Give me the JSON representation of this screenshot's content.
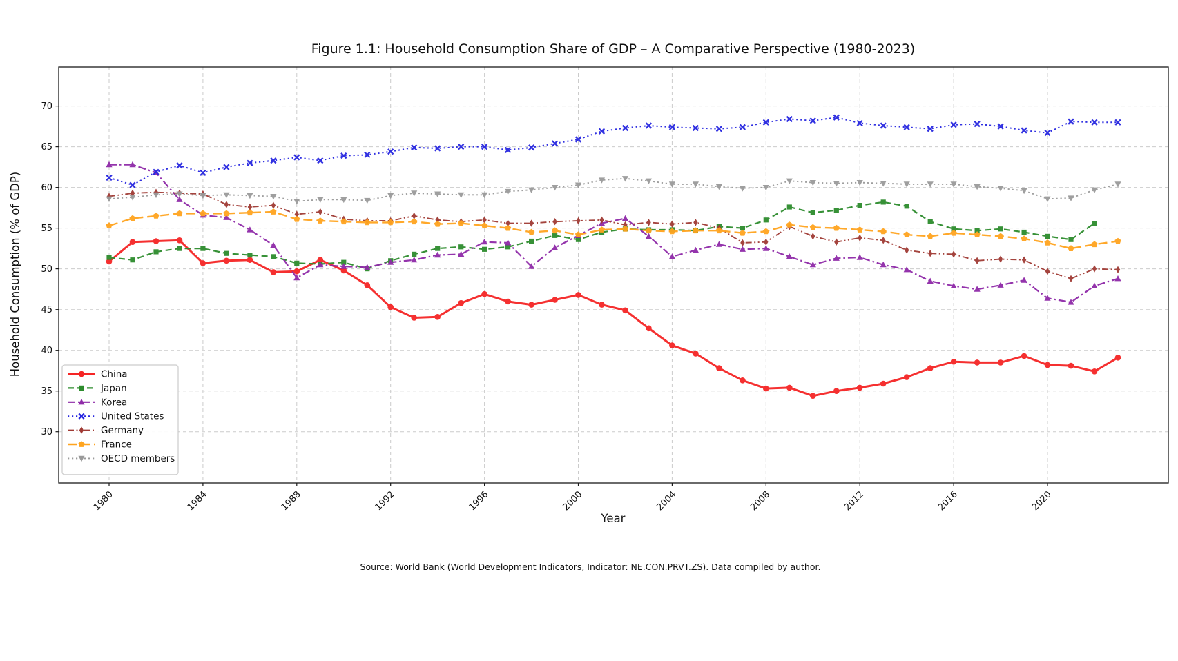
{
  "source_note": "Source: World Bank (World Development Indicators, Indicator: NE.CON.PRVT.ZS). Data compiled by author.",
  "chart_data": {
    "type": "line",
    "title": "Figure 1.1: Household Consumption Share of GDP – A Comparative Perspective (1980-2023)",
    "xlabel": "Year",
    "ylabel": "Household Consumption (% of GDP)",
    "grid": true,
    "legend_position": "lower left",
    "xlim": [
      1977.85,
      2025.15
    ],
    "ylim": [
      23.7,
      74.8
    ],
    "xticks": [
      1980,
      1984,
      1988,
      1992,
      1996,
      2000,
      2004,
      2008,
      2012,
      2016,
      2020
    ],
    "yticks": [
      30,
      35,
      40,
      45,
      50,
      55,
      60,
      65,
      70
    ],
    "x": [
      1980,
      1981,
      1982,
      1983,
      1984,
      1985,
      1986,
      1987,
      1988,
      1989,
      1990,
      1991,
      1992,
      1993,
      1994,
      1995,
      1996,
      1997,
      1998,
      1999,
      2000,
      2001,
      2002,
      2003,
      2004,
      2005,
      2006,
      2007,
      2008,
      2009,
      2010,
      2011,
      2012,
      2013,
      2014,
      2015,
      2016,
      2017,
      2018,
      2019,
      2020,
      2021,
      2022,
      2023
    ],
    "series": [
      {
        "id": "china",
        "name": "China",
        "color": "#f52525",
        "dash": "solid",
        "marker": "circle",
        "linewidth": 3,
        "values": [
          50.9,
          53.3,
          53.4,
          53.5,
          50.7,
          51.0,
          51.1,
          49.6,
          49.7,
          51.1,
          49.8,
          48.0,
          45.3,
          44.0,
          44.1,
          45.8,
          46.9,
          46.0,
          45.6,
          46.2,
          46.8,
          45.6,
          44.9,
          42.7,
          40.6,
          39.6,
          37.8,
          36.3,
          35.3,
          35.4,
          34.4,
          35.0,
          35.4,
          35.9,
          36.7,
          37.8,
          38.6,
          38.5,
          38.5,
          39.3,
          38.2,
          38.1,
          37.4,
          39.1
        ]
      },
      {
        "id": "japan",
        "name": "Japan",
        "color": "#2d8c2d",
        "dash": "dashed",
        "marker": "square",
        "linewidth": 2.2,
        "values": [
          51.4,
          51.1,
          52.1,
          52.5,
          52.5,
          51.9,
          51.7,
          51.5,
          50.7,
          50.6,
          50.8,
          50.0,
          51.0,
          51.8,
          52.5,
          52.7,
          52.4,
          52.7,
          53.4,
          54.1,
          53.6,
          54.5,
          54.9,
          54.8,
          54.8,
          54.7,
          55.2,
          55.0,
          56.0,
          57.6,
          56.9,
          57.2,
          57.8,
          58.2,
          57.7,
          55.8,
          54.9,
          54.7,
          54.9,
          54.5,
          54.0,
          53.6,
          55.6,
          null
        ]
      },
      {
        "id": "korea",
        "name": "Korea",
        "color": "#8f2aa8",
        "dash": "dashdot",
        "marker": "triangle-up",
        "linewidth": 2.2,
        "values": [
          62.8,
          62.8,
          61.8,
          58.5,
          56.6,
          56.3,
          54.8,
          52.9,
          48.9,
          50.5,
          50.3,
          50.2,
          50.8,
          51.1,
          51.7,
          51.8,
          53.3,
          53.2,
          50.3,
          52.6,
          54.1,
          55.6,
          56.2,
          54.0,
          51.5,
          52.3,
          53.0,
          52.4,
          52.5,
          51.5,
          50.5,
          51.3,
          51.4,
          50.5,
          49.9,
          48.5,
          47.9,
          47.5,
          48.0,
          48.6,
          46.4,
          45.9,
          47.9,
          48.8
        ]
      },
      {
        "id": "united-states",
        "name": "United States",
        "color": "#2626e0",
        "dash": "dotted",
        "marker": "x",
        "linewidth": 2,
        "values": [
          61.2,
          60.3,
          61.9,
          62.7,
          61.8,
          62.5,
          63.0,
          63.3,
          63.7,
          63.3,
          63.9,
          64.0,
          64.4,
          64.9,
          64.8,
          65.0,
          65.0,
          64.6,
          64.9,
          65.4,
          65.9,
          66.9,
          67.3,
          67.6,
          67.4,
          67.3,
          67.2,
          67.4,
          68.0,
          68.4,
          68.2,
          68.6,
          67.9,
          67.6,
          67.4,
          67.2,
          67.7,
          67.8,
          67.5,
          67.0,
          66.7,
          68.1,
          68.0,
          68.0
        ]
      },
      {
        "id": "germany",
        "name": "Germany",
        "color": "#a03a34",
        "dash": "dashdotdot",
        "marker": "thin-diamond",
        "linewidth": 1.9,
        "values": [
          58.9,
          59.3,
          59.4,
          59.3,
          59.2,
          57.9,
          57.6,
          57.8,
          56.7,
          57.0,
          56.1,
          55.9,
          55.9,
          56.5,
          56.0,
          55.8,
          56.0,
          55.6,
          55.6,
          55.8,
          55.9,
          56.0,
          55.4,
          55.7,
          55.5,
          55.7,
          55.0,
          53.2,
          53.3,
          55.2,
          54.0,
          53.3,
          53.8,
          53.5,
          52.3,
          51.9,
          51.8,
          51.0,
          51.2,
          51.1,
          49.7,
          48.8,
          50.0,
          49.9
        ]
      },
      {
        "id": "france",
        "name": "France",
        "color": "#ffa41f",
        "dash": "longdash",
        "marker": "pentagon",
        "linewidth": 2.4,
        "values": [
          55.3,
          56.2,
          56.5,
          56.8,
          56.8,
          56.8,
          56.9,
          57.0,
          56.1,
          55.9,
          55.8,
          55.7,
          55.7,
          55.8,
          55.5,
          55.6,
          55.3,
          55.0,
          54.5,
          54.7,
          54.2,
          54.8,
          54.9,
          54.7,
          54.6,
          54.7,
          54.7,
          54.4,
          54.6,
          55.4,
          55.1,
          55.0,
          54.8,
          54.6,
          54.2,
          54.0,
          54.4,
          54.2,
          54.0,
          53.7,
          53.2,
          52.5,
          53.0,
          53.4
        ]
      },
      {
        "id": "oecd-members",
        "name": "OECD members",
        "color": "#9a9a9a",
        "dash": "dotted",
        "marker": "triangle-down",
        "linewidth": 1.9,
        "values": [
          58.6,
          58.8,
          59.1,
          59.2,
          59.0,
          59.1,
          59.0,
          58.9,
          58.3,
          58.5,
          58.5,
          58.4,
          59.0,
          59.3,
          59.2,
          59.1,
          59.1,
          59.5,
          59.7,
          60.0,
          60.3,
          60.9,
          61.1,
          60.8,
          60.4,
          60.4,
          60.1,
          59.9,
          60.0,
          60.8,
          60.6,
          60.5,
          60.6,
          60.5,
          60.4,
          60.4,
          60.4,
          60.1,
          59.9,
          59.6,
          58.6,
          58.7,
          59.7,
          60.4
        ]
      }
    ]
  }
}
